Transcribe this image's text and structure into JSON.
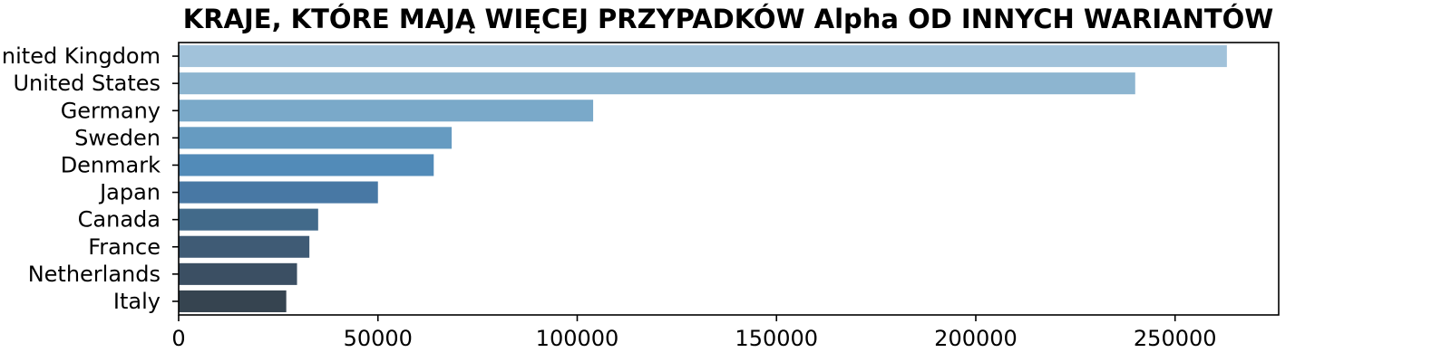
{
  "chart_data": {
    "type": "bar",
    "orientation": "horizontal",
    "title": "KRAJE, KTÓRE MAJĄ WIĘCEJ PRZYPADKÓW Alpha OD INNYCH WARIANTÓW",
    "xlabel": "",
    "ylabel": "",
    "categories": [
      "United Kingdom",
      "United States",
      "Germany",
      "Sweden",
      "Denmark",
      "Japan",
      "Canada",
      "France",
      "Netherlands",
      "Italy"
    ],
    "values": [
      263000,
      240000,
      104000,
      68500,
      64000,
      50000,
      35000,
      32800,
      29700,
      27000
    ],
    "colors": [
      "#a1c2da",
      "#8db5d0",
      "#7aa9c9",
      "#669bc1",
      "#528bb8",
      "#4878a4",
      "#426a8a",
      "#3f5b75",
      "#3b4f63",
      "#364450"
    ],
    "xlim": [
      0,
      276000
    ],
    "xticks": [
      0,
      50000,
      100000,
      150000,
      200000,
      250000
    ],
    "grid": false,
    "legend": "none"
  }
}
